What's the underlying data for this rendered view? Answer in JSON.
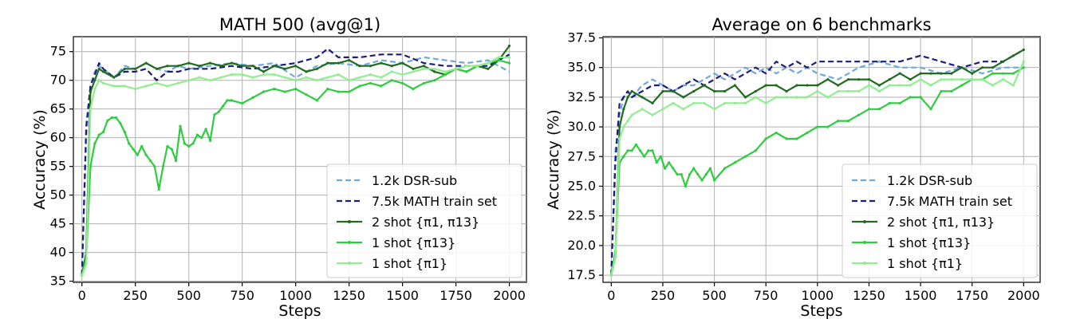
{
  "chart_data": [
    {
      "type": "line",
      "title": "MATH 500 (avg@1)",
      "xlabel": "Steps",
      "ylabel": "Accuracy (%)",
      "xlim": [
        -40,
        2080
      ],
      "ylim": [
        34.8,
        77.6
      ],
      "xticks": [
        0,
        250,
        500,
        750,
        1000,
        1250,
        1500,
        1750,
        2000
      ],
      "yticks": [
        35,
        40,
        45,
        50,
        55,
        60,
        65,
        70,
        75
      ],
      "grid": true,
      "legend_position": "lower-right",
      "series": [
        {
          "name": "1.2k DSR-sub",
          "color": "#6fa8dc",
          "style": "dashed",
          "x": [
            0,
            20,
            40,
            60,
            80,
            100,
            150,
            200,
            250,
            300,
            350,
            400,
            450,
            500,
            600,
            700,
            800,
            900,
            1000,
            1100,
            1200,
            1300,
            1400,
            1500,
            1600,
            1700,
            1800,
            1900,
            2000
          ],
          "y": [
            36,
            60,
            69,
            71.5,
            72.5,
            72,
            70.5,
            72.5,
            72,
            73,
            72,
            71.5,
            72.5,
            72,
            72.5,
            73,
            72.5,
            73,
            70.5,
            72.5,
            73,
            72.5,
            73.5,
            73,
            74,
            73.5,
            73,
            73.5,
            71.5
          ]
        },
        {
          "name": "7.5k MATH train set",
          "color": "#1c1c7a",
          "style": "dashed",
          "x": [
            0,
            20,
            40,
            60,
            80,
            100,
            150,
            200,
            250,
            300,
            350,
            400,
            450,
            500,
            600,
            700,
            800,
            900,
            1000,
            1100,
            1150,
            1200,
            1300,
            1400,
            1500,
            1600,
            1700,
            1800,
            1900,
            2000
          ],
          "y": [
            36,
            62,
            69,
            71,
            73,
            72,
            70.5,
            71.5,
            71.5,
            72,
            70,
            71.5,
            71.5,
            72,
            72,
            72.5,
            72,
            72.5,
            73,
            74,
            75.5,
            74,
            74,
            74.5,
            74.5,
            73,
            72.5,
            72.5,
            72.5,
            74.5
          ]
        },
        {
          "name": "2 shot {π1, π13}",
          "color": "#1f6b1f",
          "style": "solid",
          "x": [
            0,
            20,
            40,
            60,
            80,
            100,
            150,
            200,
            250,
            300,
            350,
            400,
            450,
            500,
            550,
            600,
            650,
            700,
            750,
            800,
            850,
            900,
            950,
            1000,
            1050,
            1100,
            1150,
            1200,
            1250,
            1300,
            1350,
            1400,
            1450,
            1500,
            1550,
            1600,
            1650,
            1700,
            1750,
            1800,
            1850,
            1900,
            1950,
            2000
          ],
          "y": [
            36,
            40,
            68,
            70,
            72,
            71.5,
            70.5,
            72,
            72,
            73,
            72,
            72.5,
            72.5,
            73,
            72.5,
            73,
            72.5,
            73,
            72.5,
            72.5,
            71.5,
            72.5,
            72,
            72.5,
            71.5,
            72,
            73,
            73,
            73.5,
            72.5,
            72.5,
            73,
            72.5,
            73,
            72,
            72.5,
            71.5,
            71,
            72,
            71.5,
            72.5,
            72,
            73.5,
            76
          ]
        },
        {
          "name": "1 shot {π13}",
          "color": "#2ecc40",
          "style": "solid",
          "x": [
            0,
            20,
            40,
            60,
            80,
            100,
            120,
            140,
            160,
            180,
            200,
            220,
            240,
            260,
            280,
            300,
            320,
            340,
            360,
            380,
            400,
            420,
            440,
            460,
            480,
            500,
            520,
            540,
            560,
            580,
            600,
            620,
            640,
            660,
            680,
            700,
            750,
            800,
            850,
            900,
            950,
            1000,
            1050,
            1100,
            1150,
            1200,
            1250,
            1300,
            1350,
            1400,
            1450,
            1500,
            1550,
            1600,
            1650,
            1700,
            1750,
            1800,
            1850,
            1900,
            1950,
            2000
          ],
          "y": [
            36,
            39,
            55,
            59,
            60.5,
            61,
            63,
            63.5,
            63.5,
            62.5,
            61,
            59,
            58,
            57,
            58.5,
            57,
            56,
            55,
            51,
            55,
            58.5,
            58,
            56,
            62,
            59,
            58.5,
            59,
            60.5,
            60,
            61.5,
            59.5,
            64,
            64.5,
            65.5,
            66.5,
            66.5,
            66,
            67,
            68,
            68.5,
            68,
            68.5,
            67.5,
            66.5,
            68.5,
            68,
            68,
            69,
            69.5,
            69,
            70,
            69.5,
            68.5,
            69.5,
            70,
            71,
            72,
            71.5,
            72.5,
            73,
            73.5,
            73
          ]
        },
        {
          "name": "1 shot {π1}",
          "color": "#90ee90",
          "style": "solid",
          "x": [
            0,
            20,
            40,
            60,
            80,
            100,
            150,
            200,
            250,
            300,
            350,
            400,
            450,
            500,
            550,
            600,
            650,
            700,
            750,
            800,
            850,
            900,
            950,
            1000,
            1050,
            1100,
            1150,
            1200,
            1250,
            1300,
            1350,
            1400,
            1450,
            1500,
            1550,
            1600,
            1650,
            1700,
            1750,
            1800,
            1850,
            1900,
            1950,
            2000
          ],
          "y": [
            36,
            38,
            65,
            68.5,
            70,
            69.5,
            69,
            69,
            68.5,
            69,
            69.5,
            69,
            69.5,
            70,
            70.5,
            70,
            70.5,
            71,
            71,
            70.5,
            71,
            71,
            70.5,
            70,
            70.5,
            70,
            70.5,
            71,
            70,
            70.5,
            71,
            70.5,
            71.5,
            71,
            71.5,
            72,
            72,
            71.5,
            72,
            72.5,
            72.5,
            73,
            74,
            74
          ]
        }
      ]
    },
    {
      "type": "line",
      "title": "Average on 6 benchmarks",
      "xlabel": "Steps",
      "ylabel": "Accuracy (%)",
      "xlim": [
        -40,
        2080
      ],
      "ylim": [
        16.9,
        37.6
      ],
      "xticks": [
        0,
        250,
        500,
        750,
        1000,
        1250,
        1500,
        1750,
        2000
      ],
      "yticks": [
        17.5,
        20.0,
        22.5,
        25.0,
        27.5,
        30.0,
        32.5,
        35.0,
        37.5
      ],
      "grid": true,
      "legend_position": "lower-right",
      "series": [
        {
          "name": "1.2k DSR-sub",
          "color": "#6fa8dc",
          "style": "dashed",
          "x": [
            0,
            20,
            40,
            60,
            80,
            100,
            150,
            200,
            250,
            300,
            350,
            400,
            450,
            500,
            550,
            600,
            650,
            700,
            750,
            800,
            850,
            900,
            950,
            1000,
            1100,
            1200,
            1300,
            1400,
            1500,
            1600,
            1700,
            1800,
            1900,
            2000
          ],
          "y": [
            17.5,
            28,
            31,
            32.5,
            33,
            32.5,
            33.5,
            34,
            33.5,
            33,
            33.5,
            33.5,
            34,
            34.5,
            34,
            34.5,
            35,
            34.5,
            35,
            34.5,
            35,
            34.5,
            35,
            34.5,
            34,
            35,
            35.5,
            35,
            35,
            34.5,
            35,
            34.5,
            35,
            35
          ]
        },
        {
          "name": "7.5k MATH train set",
          "color": "#1c1c7a",
          "style": "dashed",
          "x": [
            0,
            20,
            40,
            60,
            80,
            100,
            150,
            200,
            250,
            300,
            350,
            400,
            450,
            500,
            550,
            600,
            650,
            700,
            750,
            800,
            850,
            900,
            950,
            1000,
            1100,
            1200,
            1300,
            1400,
            1500,
            1600,
            1700,
            1800,
            1900,
            2000
          ],
          "y": [
            17.5,
            27,
            32,
            32.5,
            33,
            32.5,
            33,
            33.5,
            33.5,
            33,
            33.5,
            34,
            33.5,
            34,
            34.5,
            34,
            34.5,
            35,
            34.5,
            35.5,
            35,
            35.5,
            35,
            35.5,
            35.5,
            35.5,
            35.5,
            35.5,
            36,
            35.5,
            35,
            35.5,
            35.5,
            36.5
          ]
        },
        {
          "name": "2 shot {π1, π13}",
          "color": "#1f6b1f",
          "style": "solid",
          "x": [
            0,
            20,
            40,
            60,
            80,
            100,
            150,
            200,
            250,
            300,
            350,
            400,
            450,
            500,
            550,
            600,
            650,
            700,
            750,
            800,
            850,
            900,
            950,
            1000,
            1050,
            1100,
            1150,
            1200,
            1250,
            1300,
            1350,
            1400,
            1450,
            1500,
            1550,
            1600,
            1650,
            1700,
            1750,
            1800,
            1850,
            1900,
            1950,
            2000
          ],
          "y": [
            17.5,
            19,
            30,
            31.5,
            32.5,
            33,
            32.5,
            32,
            33,
            33,
            32.5,
            33,
            33.5,
            33,
            33,
            33.5,
            32.5,
            33,
            33.5,
            33.5,
            33,
            33.5,
            33.5,
            33.5,
            34,
            33.5,
            34,
            34,
            34,
            33.5,
            34,
            34.5,
            34,
            34.5,
            34.5,
            34.5,
            34.5,
            35,
            34.5,
            35,
            35,
            35.5,
            36,
            36.5
          ]
        },
        {
          "name": "1 shot {π13}",
          "color": "#2ecc40",
          "style": "solid",
          "x": [
            0,
            20,
            40,
            60,
            80,
            100,
            120,
            140,
            160,
            180,
            200,
            220,
            240,
            260,
            280,
            300,
            320,
            340,
            360,
            380,
            400,
            420,
            440,
            460,
            480,
            500,
            550,
            600,
            650,
            700,
            750,
            800,
            850,
            900,
            950,
            1000,
            1050,
            1100,
            1150,
            1200,
            1250,
            1300,
            1350,
            1400,
            1450,
            1500,
            1550,
            1600,
            1650,
            1700,
            1750,
            1800,
            1850,
            1900,
            1950,
            2000
          ],
          "y": [
            17.5,
            19.5,
            27,
            27.5,
            28,
            28,
            28.5,
            28,
            27.5,
            28,
            28,
            27,
            27.5,
            26.5,
            27,
            26.5,
            26,
            26,
            25,
            26,
            26.5,
            26,
            25.5,
            26,
            26.5,
            25.5,
            26.5,
            27,
            27.5,
            28,
            29,
            29.5,
            29,
            29,
            29.5,
            30,
            30,
            30.5,
            30.5,
            31,
            31.5,
            31.5,
            32,
            32,
            32.5,
            32.5,
            31.5,
            33,
            33,
            33.5,
            34,
            34,
            34.5,
            34.5,
            34.5,
            35
          ]
        },
        {
          "name": "1 shot {π1}",
          "color": "#90ee90",
          "style": "solid",
          "x": [
            0,
            20,
            40,
            60,
            80,
            100,
            150,
            200,
            250,
            300,
            350,
            400,
            450,
            500,
            550,
            600,
            650,
            700,
            750,
            800,
            850,
            900,
            950,
            1000,
            1050,
            1100,
            1150,
            1200,
            1250,
            1300,
            1350,
            1400,
            1450,
            1500,
            1550,
            1600,
            1650,
            1700,
            1750,
            1800,
            1850,
            1900,
            1950,
            2000
          ],
          "y": [
            17.5,
            19,
            29,
            30,
            30.5,
            31,
            31.5,
            31,
            31.5,
            32,
            31.5,
            32,
            32,
            31.5,
            32,
            32,
            32,
            32.5,
            32,
            32.5,
            32.5,
            32.5,
            32.5,
            33,
            32.5,
            33,
            33,
            33,
            33.5,
            33,
            33.5,
            33.5,
            33.5,
            34,
            33.5,
            34,
            34,
            34,
            34,
            34,
            33.5,
            34,
            33.5,
            35.5
          ]
        }
      ]
    }
  ]
}
